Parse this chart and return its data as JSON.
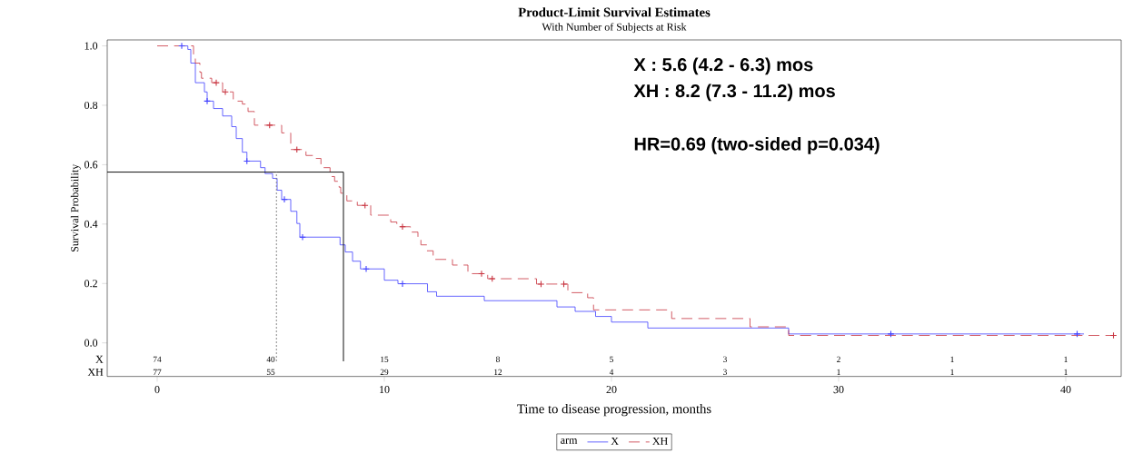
{
  "chart_data": {
    "type": "step",
    "title": "Product-Limit Survival Estimates",
    "subtitle": "With Number of Subjects at Risk",
    "xlabel": "Time to disease progression, months",
    "ylabel": "Survival Probability",
    "legend_title": "arm",
    "legend": "bottom",
    "xlim": [
      -2.2,
      42.44
    ],
    "ylim": [
      -0.113,
      1.02
    ],
    "xticks": [
      0,
      10,
      20,
      30,
      40
    ],
    "yticks": [
      {
        "value": 0,
        "label": "0.0"
      },
      {
        "value": 0.2,
        "label": "0.2"
      },
      {
        "value": 0.4,
        "label": "0.4"
      },
      {
        "value": 0.6,
        "label": "0.6"
      },
      {
        "value": 0.8,
        "label": "0.8"
      },
      {
        "value": 1,
        "label": "1.0"
      }
    ],
    "series": [
      {
        "name": "X",
        "color": "#4040ff",
        "line_style": "solid",
        "x": [
          1.08,
          1.35,
          1.48,
          1.68,
          2.08,
          2.2,
          2.48,
          2.88,
          3.28,
          3.48,
          3.75,
          3.95,
          4.55,
          4.75,
          5.08,
          5.28,
          5.48,
          5.88,
          6.15,
          6.28,
          8.05,
          8.28,
          8.6,
          8.95,
          10.0,
          10.6,
          11.9,
          12.3,
          14.4,
          17.6,
          18.4,
          19.3,
          20.0,
          21.6,
          27.8,
          40.8
        ],
        "values": [
          1.0,
          0.988,
          0.942,
          0.876,
          0.845,
          0.814,
          0.789,
          0.764,
          0.728,
          0.688,
          0.642,
          0.612,
          0.59,
          0.57,
          0.554,
          0.514,
          0.483,
          0.443,
          0.402,
          0.356,
          0.33,
          0.306,
          0.275,
          0.249,
          0.211,
          0.199,
          0.172,
          0.157,
          0.142,
          0.121,
          0.106,
          0.089,
          0.07,
          0.05,
          0.03,
          0.03
        ]
      },
      {
        "name": "XH",
        "color": "#c8333f",
        "line_style": "dashed",
        "x": [
          0,
          1.6,
          1.68,
          1.88,
          1.95,
          2.4,
          2.88,
          3.35,
          3.75,
          4.0,
          4.28,
          5.48,
          5.88,
          6.55,
          6.88,
          7.21,
          7.61,
          7.81,
          8.01,
          8.08,
          8.35,
          8.81,
          9.4,
          10.28,
          10.55,
          11.15,
          11.48,
          11.61,
          11.88,
          12.15,
          13.0,
          13.68,
          14.55,
          16.7,
          18.08,
          18.95,
          19.21,
          22.65,
          26.1,
          27.8,
          42.1
        ],
        "values": [
          1.0,
          0.957,
          0.942,
          0.911,
          0.891,
          0.876,
          0.845,
          0.814,
          0.804,
          0.779,
          0.733,
          0.707,
          0.651,
          0.631,
          0.621,
          0.59,
          0.56,
          0.544,
          0.524,
          0.504,
          0.478,
          0.463,
          0.43,
          0.407,
          0.391,
          0.373,
          0.356,
          0.33,
          0.31,
          0.281,
          0.262,
          0.233,
          0.216,
          0.198,
          0.169,
          0.152,
          0.111,
          0.082,
          0.054,
          0.025,
          0.025
        ]
      },
      {
        "type": "scatter",
        "marker": "cross",
        "color": "#4040ff",
        "x": [
          1.08,
          2.2,
          3.95,
          5.6,
          6.4,
          9.2,
          10.8,
          32.3,
          40.5
        ],
        "values": [
          1.0,
          0.814,
          0.612,
          0.483,
          0.356,
          0.249,
          0.199,
          0.03,
          0.03
        ]
      },
      {
        "type": "scatter",
        "marker": "cross",
        "color": "#c8333f",
        "x": [
          2.6,
          3.0,
          4.95,
          6.15,
          9.15,
          10.8,
          14.28,
          14.75,
          16.9,
          17.9,
          42.1
        ],
        "values": [
          0.876,
          0.845,
          0.733,
          0.651,
          0.463,
          0.391,
          0.233,
          0.216,
          0.198,
          0.198,
          0.025
        ]
      }
    ],
    "ref_lines": [
      {
        "axis": "y",
        "value": 0.575,
        "color": "#000000",
        "line_style": "solid"
      },
      {
        "axis": "x",
        "value": 8.2,
        "color": "#000000",
        "line_style": "solid"
      },
      {
        "axis": "x",
        "value": 5.25,
        "color": "#808080",
        "line_style": "dotted"
      }
    ],
    "annotations": [
      "X : 5.6 (4.2 - 6.3) mos",
      "XH : 8.2 (7.3 - 11.2) mos",
      "HR=0.69 (two-sided p=0.034)",
      "74",
      "40",
      "15",
      "8",
      "5",
      "3",
      "2",
      "1",
      "1",
      "77",
      "55",
      "29",
      "12",
      "4",
      "3",
      "1",
      "1",
      "1"
    ]
  }
}
